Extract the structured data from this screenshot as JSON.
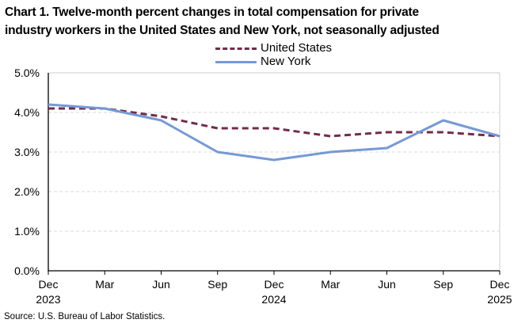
{
  "title_lines": [
    "Chart 1. Twelve-month percent changes in total compensation for private",
    "industry workers in the United States and New York, not seasonally adjusted"
  ],
  "source": "Source: U.S. Bureau of Labor Statistics.",
  "colors": {
    "united_states_line": "#722C4A",
    "new_york_line": "#7699D6",
    "gridline": "#D9D9D9",
    "plot_border": "#CCCCCC",
    "axis": "#000000",
    "text": "#000000"
  },
  "chart_data": {
    "type": "line",
    "categories": [
      "Dec 2023",
      "Mar",
      "Jun",
      "Sep",
      "Dec 2024",
      "Mar",
      "Jun",
      "Sep",
      "Dec 2025"
    ],
    "series": [
      {
        "name": "United States",
        "values": [
          4.1,
          4.1,
          3.9,
          3.6,
          3.6,
          3.4,
          3.5,
          3.5,
          3.4
        ],
        "color": "#722C4A",
        "dash": true
      },
      {
        "name": "New York",
        "values": [
          4.2,
          4.1,
          3.8,
          3.0,
          2.8,
          3.0,
          3.1,
          3.8,
          3.4
        ],
        "color": "#7699D6",
        "dash": false
      }
    ],
    "title": "Chart 1. Twelve-month percent changes in total compensation for private industry workers in the United States and New York, not seasonally adjusted",
    "xlabel": "",
    "ylabel": "",
    "ylim": [
      0,
      5
    ],
    "yticks": [
      {
        "value": 0,
        "label": "0.0%"
      },
      {
        "value": 1,
        "label": "1.0%"
      },
      {
        "value": 2,
        "label": "2.0%"
      },
      {
        "value": 3,
        "label": "3.0%"
      },
      {
        "value": 4,
        "label": "4.0%"
      },
      {
        "value": 5,
        "label": "5.0%"
      }
    ],
    "grid": true,
    "legend_position": "top-center"
  }
}
